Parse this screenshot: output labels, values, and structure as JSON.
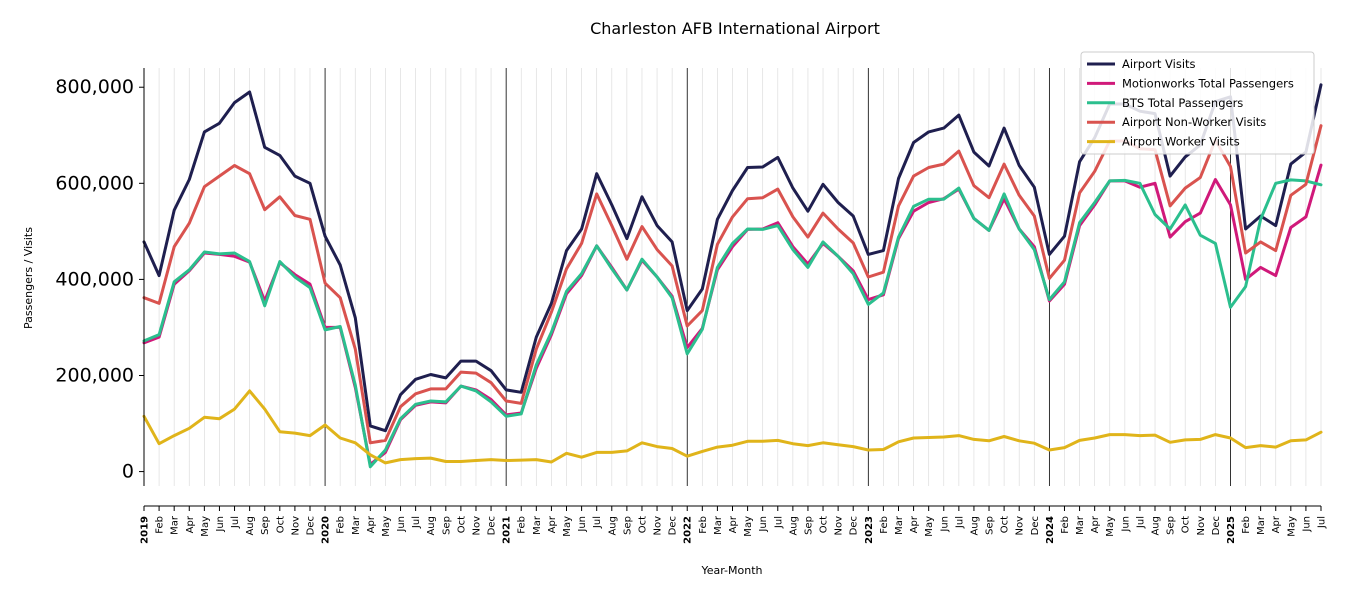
{
  "chart_data": {
    "type": "line",
    "title": "Charleston AFB International Airport",
    "xlabel": "Year-Month",
    "ylabel": "Passengers / Visits",
    "ylim": [
      -30000,
      840000
    ],
    "y_ticks": [
      0,
      200000,
      400000,
      600000,
      800000
    ],
    "y_tick_labels": [
      "0",
      "200,000",
      "400,000",
      "600,000",
      "800,000"
    ],
    "grid": "vertical monthly lines, black line at each January",
    "legend_position": "top-right",
    "x": [
      "2019-01",
      "2019-02",
      "2019-03",
      "2019-04",
      "2019-05",
      "2019-06",
      "2019-07",
      "2019-08",
      "2019-09",
      "2019-10",
      "2019-11",
      "2019-12",
      "2020-01",
      "2020-02",
      "2020-03",
      "2020-04",
      "2020-05",
      "2020-06",
      "2020-07",
      "2020-08",
      "2020-09",
      "2020-10",
      "2020-11",
      "2020-12",
      "2021-01",
      "2021-02",
      "2021-03",
      "2021-04",
      "2021-05",
      "2021-06",
      "2021-07",
      "2021-08",
      "2021-09",
      "2021-10",
      "2021-11",
      "2021-12",
      "2022-01",
      "2022-02",
      "2022-03",
      "2022-04",
      "2022-05",
      "2022-06",
      "2022-07",
      "2022-08",
      "2022-09",
      "2022-10",
      "2022-11",
      "2022-12",
      "2023-01",
      "2023-02",
      "2023-03",
      "2023-04",
      "2023-05",
      "2023-06",
      "2023-07",
      "2023-08",
      "2023-09",
      "2023-10",
      "2023-11",
      "2023-12",
      "2024-01",
      "2024-02",
      "2024-03",
      "2024-04",
      "2024-05",
      "2024-06",
      "2024-07",
      "2024-08",
      "2024-09",
      "2024-10",
      "2024-11",
      "2024-12",
      "2025-01",
      "2025-02",
      "2025-03",
      "2025-04",
      "2025-05",
      "2025-06",
      "2025-07"
    ],
    "x_tick_labels": [
      "2019",
      "Feb",
      "Mar",
      "Apr",
      "May",
      "Jun",
      "Jul",
      "Aug",
      "Sep",
      "Oct",
      "Nov",
      "Dec",
      "2020",
      "Feb",
      "Mar",
      "Apr",
      "May",
      "Jun",
      "Jul",
      "Aug",
      "Sep",
      "Oct",
      "Nov",
      "Dec",
      "2021",
      "Feb",
      "Mar",
      "Apr",
      "May",
      "Jun",
      "Jul",
      "Aug",
      "Sep",
      "Oct",
      "Nov",
      "Dec",
      "2022",
      "Feb",
      "Mar",
      "Apr",
      "May",
      "Jun",
      "Jul",
      "Aug",
      "Sep",
      "Oct",
      "Nov",
      "Dec",
      "2023",
      "Feb",
      "Mar",
      "Apr",
      "May",
      "Jun",
      "Jul",
      "Aug",
      "Sep",
      "Oct",
      "Nov",
      "Dec",
      "2024",
      "Feb",
      "Mar",
      "Apr",
      "May",
      "Jun",
      "Jul",
      "Aug",
      "Sep",
      "Oct",
      "Nov",
      "Dec",
      "2025",
      "Feb",
      "Mar",
      "Apr",
      "May",
      "Jun",
      "Jul"
    ],
    "series": [
      {
        "name": "Airport Visits",
        "color": "#1f1f4f",
        "values": [
          478000,
          408000,
          544000,
          608000,
          707000,
          725000,
          768000,
          790000,
          675000,
          658000,
          615000,
          600000,
          490000,
          430000,
          320000,
          95000,
          85000,
          160000,
          192000,
          202000,
          195000,
          230000,
          230000,
          210000,
          170000,
          165000,
          280000,
          350000,
          460000,
          505000,
          620000,
          555000,
          485000,
          572000,
          512000,
          478000,
          335000,
          380000,
          525000,
          585000,
          633000,
          634000,
          654000,
          590000,
          542000,
          598000,
          560000,
          532000,
          452000,
          460000,
          610000,
          685000,
          707000,
          715000,
          742000,
          665000,
          636000,
          715000,
          637000,
          592000,
          452000,
          490000,
          645000,
          695000,
          765000,
          765000,
          750000,
          745000,
          615000,
          655000,
          680000,
          770000,
          780000,
          505000,
          532000,
          512000,
          640000,
          665000,
          805000
        ]
      },
      {
        "name": "Motionworks Total Passengers",
        "color": "#d0197a",
        "values": [
          268000,
          280000,
          390000,
          418000,
          455000,
          452000,
          448000,
          436000,
          355000,
          435000,
          410000,
          390000,
          300000,
          300000,
          175000,
          15000,
          40000,
          108000,
          138000,
          145000,
          143000,
          178000,
          170000,
          150000,
          118000,
          122000,
          215000,
          285000,
          370000,
          408000,
          470000,
          425000,
          378000,
          440000,
          405000,
          365000,
          258000,
          298000,
          420000,
          468000,
          504000,
          505000,
          518000,
          468000,
          432000,
          475000,
          448000,
          418000,
          358000,
          368000,
          485000,
          542000,
          560000,
          568000,
          588000,
          527000,
          502000,
          568000,
          505000,
          468000,
          355000,
          390000,
          512000,
          555000,
          605000,
          605000,
          592000,
          600000,
          488000,
          520000,
          538000,
          608000,
          555000,
          400000,
          425000,
          408000,
          508000,
          530000,
          638000
        ]
      },
      {
        "name": "BTS Total Passengers",
        "color": "#2bbf8e",
        "values": [
          272000,
          285000,
          395000,
          420000,
          457000,
          453000,
          455000,
          437000,
          345000,
          437000,
          405000,
          383000,
          295000,
          302000,
          180000,
          10000,
          45000,
          110000,
          140000,
          147000,
          145000,
          178000,
          168000,
          145000,
          115000,
          120000,
          222000,
          290000,
          375000,
          412000,
          470000,
          422000,
          378000,
          442000,
          405000,
          362000,
          245000,
          296000,
          425000,
          475000,
          505000,
          504000,
          512000,
          462000,
          425000,
          478000,
          448000,
          412000,
          348000,
          372000,
          488000,
          552000,
          567000,
          567000,
          590000,
          527000,
          502000,
          578000,
          505000,
          462000,
          358000,
          395000,
          518000,
          560000,
          605000,
          606000,
          600000,
          535000,
          505000,
          555000,
          492000,
          475000,
          342000,
          385000,
          525000,
          600000,
          607000,
          605000,
          597000
        ]
      },
      {
        "name": "Airport Non-Worker Visits",
        "color": "#d9534f",
        "values": [
          362000,
          350000,
          468000,
          517000,
          593000,
          615000,
          637000,
          620000,
          545000,
          572000,
          533000,
          525000,
          392000,
          362000,
          255000,
          60000,
          65000,
          135000,
          162000,
          172000,
          172000,
          207000,
          205000,
          185000,
          147000,
          142000,
          255000,
          332000,
          422000,
          475000,
          578000,
          512000,
          442000,
          510000,
          462000,
          428000,
          303000,
          335000,
          473000,
          530000,
          568000,
          570000,
          588000,
          530000,
          488000,
          538000,
          505000,
          476000,
          405000,
          415000,
          553000,
          615000,
          633000,
          640000,
          667000,
          595000,
          570000,
          640000,
          575000,
          532000,
          402000,
          440000,
          580000,
          625000,
          688000,
          688000,
          672000,
          670000,
          553000,
          590000,
          612000,
          690000,
          635000,
          455000,
          478000,
          460000,
          575000,
          598000,
          720000
        ]
      },
      {
        "name": "Airport Worker Visits",
        "color": "#e0b41a",
        "values": [
          115000,
          58000,
          75000,
          90000,
          113000,
          110000,
          130000,
          168000,
          130000,
          83000,
          80000,
          75000,
          97000,
          70000,
          60000,
          35000,
          18000,
          25000,
          27000,
          28000,
          21000,
          21000,
          23000,
          25000,
          23000,
          24000,
          25000,
          20000,
          38000,
          30000,
          40000,
          40000,
          43000,
          60000,
          52000,
          48000,
          32000,
          42000,
          51000,
          55000,
          63000,
          63000,
          65000,
          58000,
          54000,
          60000,
          56000,
          52000,
          45000,
          46000,
          62000,
          70000,
          71000,
          72000,
          75000,
          67000,
          64000,
          73000,
          64000,
          59000,
          45000,
          50000,
          65000,
          70000,
          77000,
          77000,
          75000,
          76000,
          61000,
          66000,
          67000,
          77000,
          70000,
          50000,
          54000,
          51000,
          64000,
          66000,
          82000
        ]
      }
    ]
  }
}
